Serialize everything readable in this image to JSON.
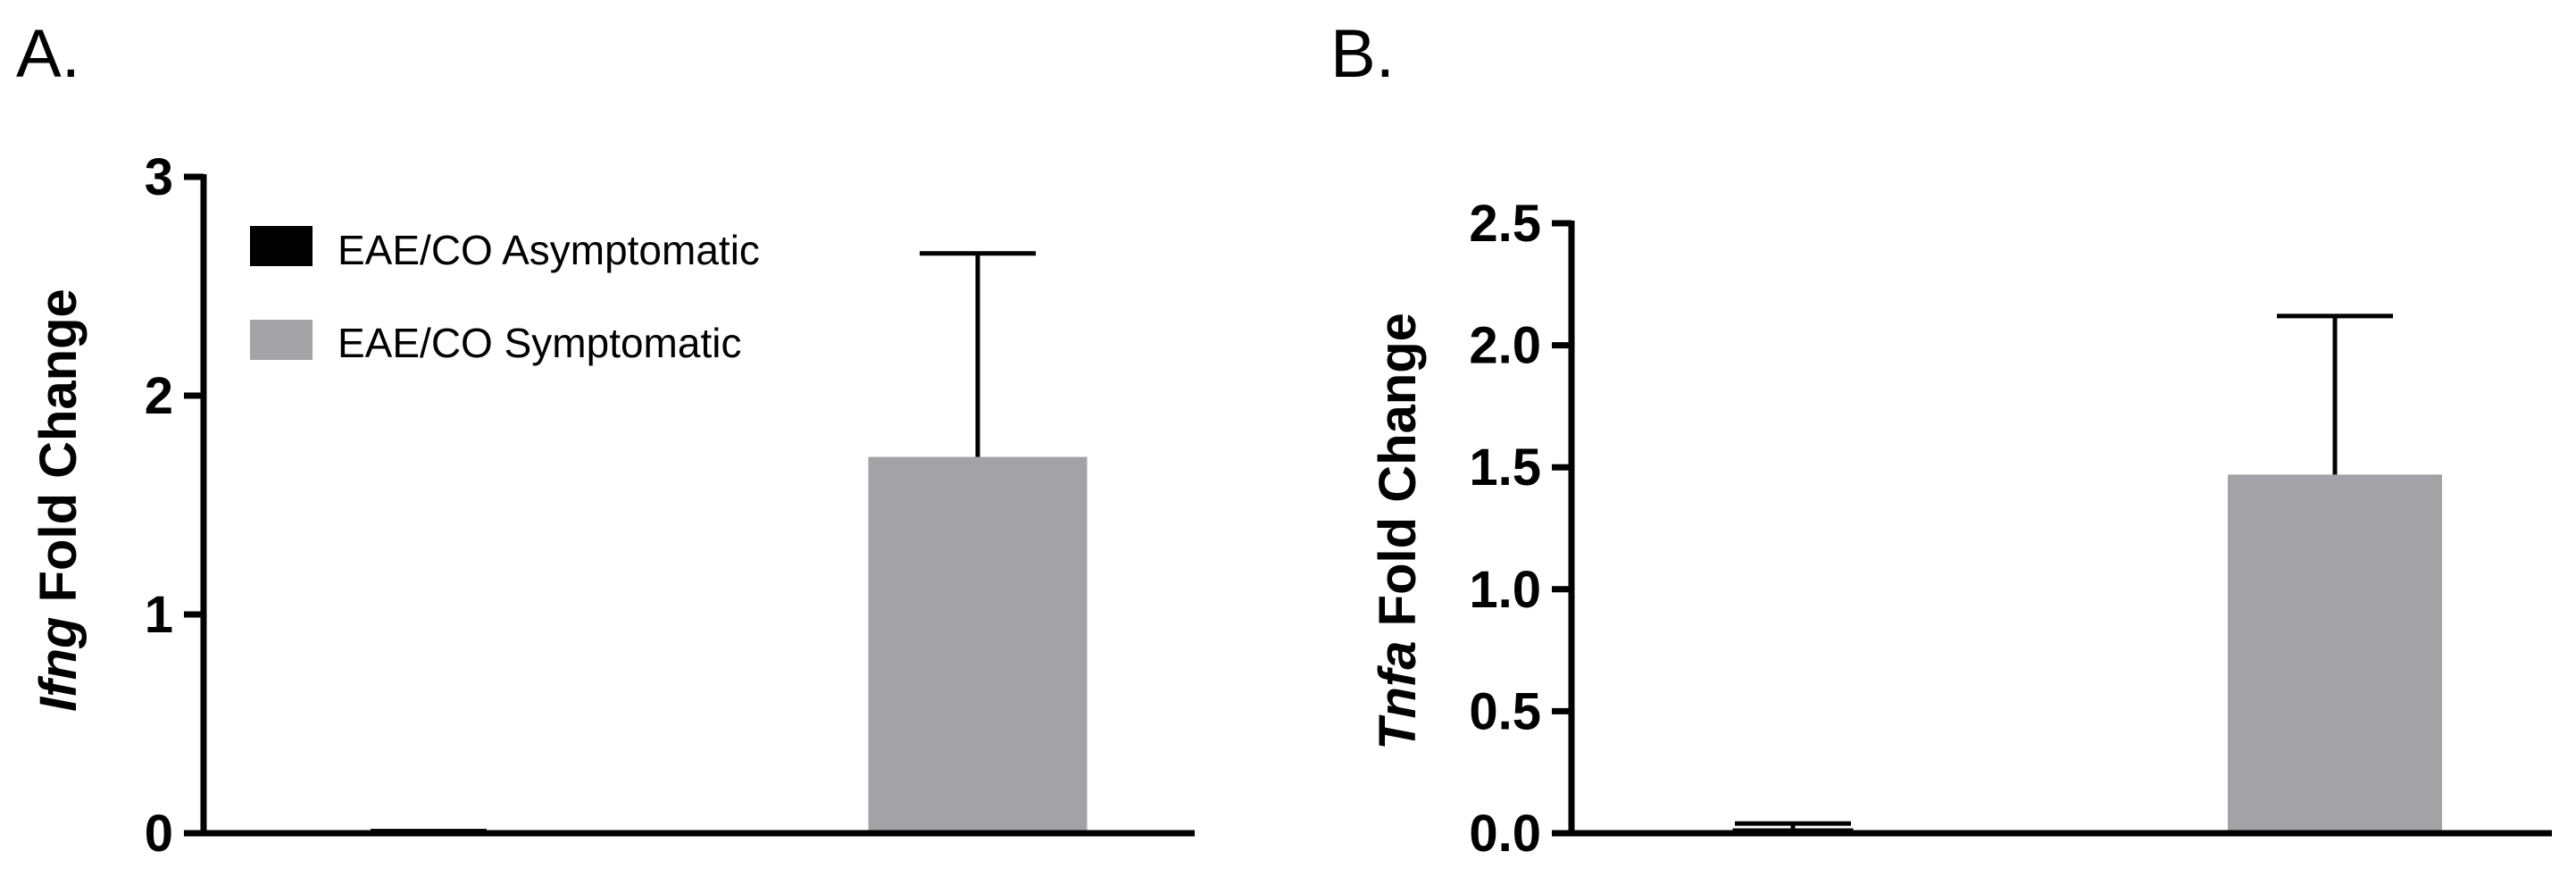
{
  "chart_data": [
    {
      "panel": "A.",
      "type": "bar",
      "ylabel_gene": "Ifng",
      "ylabel_rest": " Fold Change",
      "ylim": [
        0,
        3
      ],
      "yticks": [
        "0",
        "1",
        "2",
        "3"
      ],
      "ytick_values": [
        0,
        1,
        2,
        3
      ],
      "legend": "top-left",
      "series": [
        {
          "name": "EAE/CO Asymptomatic",
          "color": "#000000",
          "value": 0.02,
          "error": 0
        },
        {
          "name": "EAE/CO Symptomatic",
          "color": "#a3a2a6",
          "value": 1.72,
          "error": 0.93
        }
      ]
    },
    {
      "panel": "B.",
      "type": "bar",
      "ylabel_gene": "Tnfa",
      "ylabel_rest": " Fold Change",
      "ylim": [
        0,
        2.5
      ],
      "yticks": [
        "0.0",
        "0.5",
        "1.0",
        "1.5",
        "2.0",
        "2.5"
      ],
      "ytick_values": [
        0,
        0.5,
        1.0,
        1.5,
        2.0,
        2.5
      ],
      "legend": "none",
      "series": [
        {
          "name": "EAE/CO Asymptomatic",
          "color": "#000000",
          "value": 0.02,
          "error": 0.02
        },
        {
          "name": "EAE/CO Symptomatic",
          "color": "#a3a2a6",
          "value": 1.47,
          "error": 0.65
        }
      ]
    }
  ]
}
